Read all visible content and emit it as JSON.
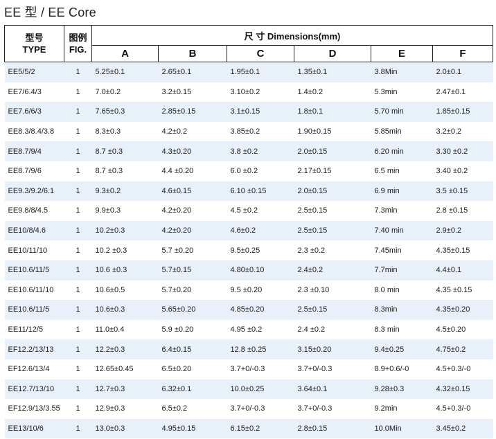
{
  "title": "EE 型 / EE Core",
  "header": {
    "type_cn": "型号",
    "type_en": "TYPE",
    "fig_cn": "图例",
    "fig_en": "FIG.",
    "dimensions": "尺 寸 Dimensions(mm)",
    "columns": [
      "A",
      "B",
      "C",
      "D",
      "E",
      "F"
    ]
  },
  "rows": [
    [
      "EE5/5/2",
      "1",
      "5.25±0.1",
      "2.65±0.1",
      "1.95±0.1",
      "1.35±0.1",
      "3.8Min",
      "2.0±0.1"
    ],
    [
      "EE7/6.4/3",
      "1",
      "7.0±0.2",
      "3.2±0.15",
      "3.10±0.2",
      "1.4±0.2",
      "5.3min",
      "2.47±0.1"
    ],
    [
      "EE7.6/6/3",
      "1",
      "7.65±0.3",
      "2.85±0.15",
      "3.1±0.15",
      "1.8±0.1",
      "5.70 min",
      "1.85±0.15"
    ],
    [
      "EE8.3/8.4/3.8",
      "1",
      "8.3±0.3",
      "4.2±0.2",
      "3.85±0.2",
      "1.90±0.15",
      "5.85min",
      "3.2±0.2"
    ],
    [
      "EE8.7/9/4",
      "1",
      "8.7 ±0.3",
      "4.3±0.20",
      "3.8 ±0.2",
      "2.0±0.15",
      "6.20 min",
      "3.30 ±0.2"
    ],
    [
      "EE8.7/9/6",
      "1",
      "8.7 ±0.3",
      "4.4 ±0.20",
      "6.0 ±0.2",
      "2.17±0.15",
      "6.5 min",
      "3.40 ±0.2"
    ],
    [
      "EE9.3/9.2/6.1",
      "1",
      "9.3±0.2",
      "4.6±0.15",
      "6.10 ±0.15",
      "2.0±0.15",
      "6.9 min",
      "3.5 ±0.15"
    ],
    [
      "EE9.8/8/4.5",
      "1",
      "9.9±0.3",
      "4.2±0.20",
      "4.5 ±0.2",
      "2.5±0.15",
      "7.3min",
      "2.8 ±0.15"
    ],
    [
      "EE10/8/4.6",
      "1",
      "10.2±0.3",
      "4.2±0.20",
      "4.6±0.2",
      "2.5±0.15",
      "7.40 min",
      "2.9±0.2"
    ],
    [
      "EE10/11/10",
      "1",
      "10.2 ±0.3",
      "5.7 ±0.20",
      "9.5±0.25",
      "2.3 ±0.2",
      "7.45min",
      "4.35±0.15"
    ],
    [
      "EE10.6/11/5",
      "1",
      "10.6 ±0.3",
      "5.7±0.15",
      "4.80±0.10",
      "2.4±0.2",
      "7.7min",
      "4.4±0.1"
    ],
    [
      "EE10.6/11/10",
      "1",
      "10.6±0.5",
      "5.7±0.20",
      "9.5 ±0.20",
      "2.3 ±0.10",
      "8.0 min",
      "4.35 ±0.15"
    ],
    [
      "EE10.6/11/5",
      "1",
      "10.6±0.3",
      "5.65±0.20",
      "4.85±0.20",
      "2.5±0.15",
      "8.3min",
      "4.35±0.20"
    ],
    [
      "EE11/12/5",
      "1",
      "11.0±0.4",
      "5.9 ±0.20",
      "4.95 ±0.2",
      "2.4 ±0.2",
      "8.3 min",
      "4.5±0.20"
    ],
    [
      "EF12.2/13/13",
      "1",
      "12.2±0.3",
      "6.4±0.15",
      "12.8 ±0.25",
      "3.15±0.20",
      "9.4±0.25",
      "4.75±0.2"
    ],
    [
      "EF12.6/13/4",
      "1",
      "12.65±0.45",
      "6.5±0.20",
      "3.7+0/-0.3",
      "3.7+0/-0.3",
      "8.9+0.6/-0",
      "4.5+0.3/-0"
    ],
    [
      "EE12.7/13/10",
      "1",
      "12.7±0.3",
      "6.32±0.1",
      "10.0±0.25",
      "3.64±0.1",
      "9.28±0.3",
      "4.32±0.15"
    ],
    [
      "EF12.9/13/3.55",
      "1",
      "12.9±0.3",
      "6.5±0.2",
      "3.7+0/-0.3",
      "3.7+0/-0.3",
      "9.2min",
      "4.5+0.3/-0"
    ],
    [
      "EE13/10/6",
      "1",
      "13.0±0.3",
      "4.95±0.15",
      "6.15±0.2",
      "2.8±0.15",
      "10.0Min",
      "3.45±0.2"
    ]
  ]
}
